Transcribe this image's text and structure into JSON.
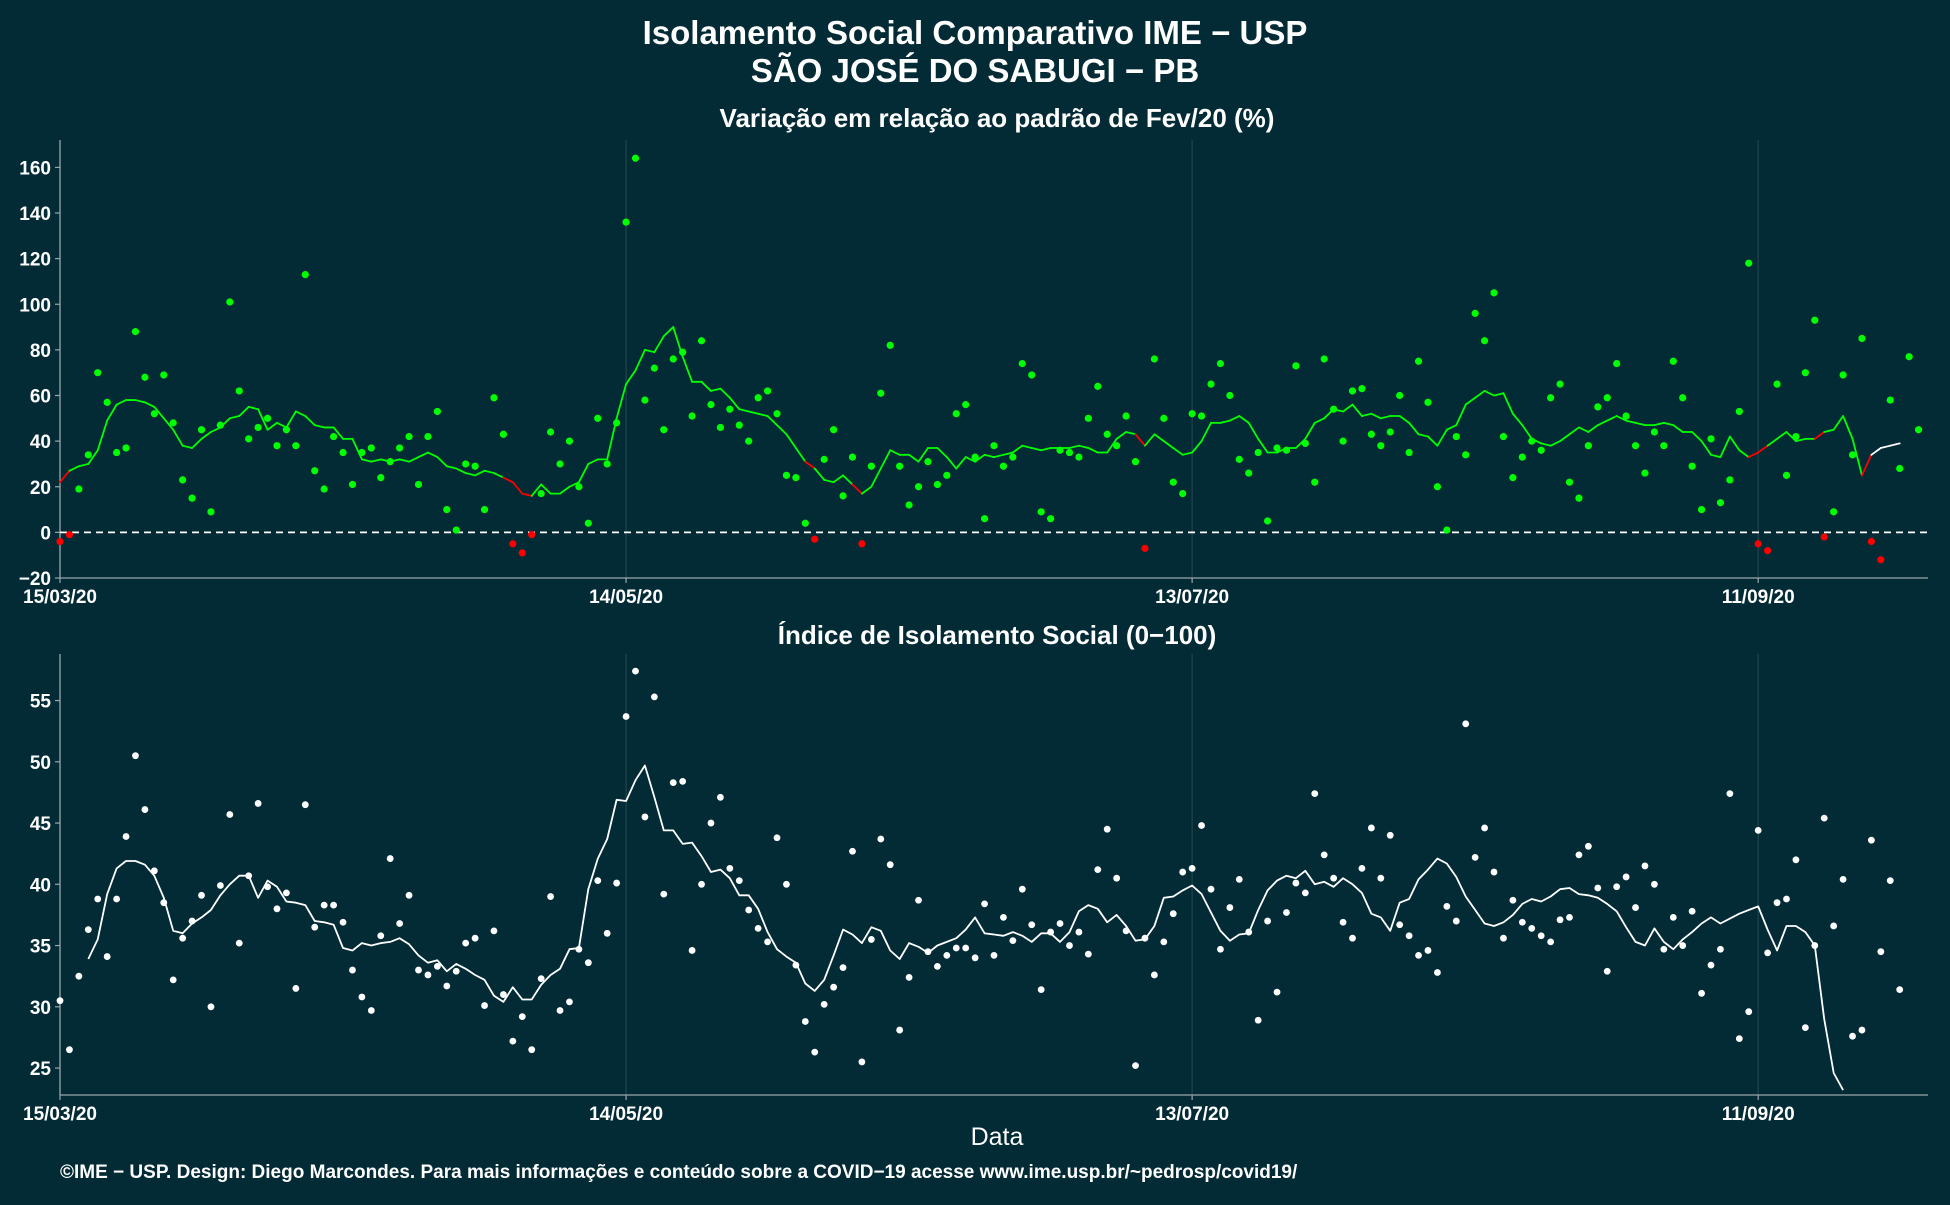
{
  "header": {
    "title_line1": "Isolamento Social Comparativo IME − USP",
    "title_line2": "SÃO JOSÉ DO SABUGI − PB"
  },
  "footer": {
    "xlabel": "Data",
    "credit": "©IME − USP. Design: Diego Marcondes. Para mais informações e conteúdo sobre a COVID−19 acesse www.ime.usp.br/~pedrosp/covid19/"
  },
  "colors": {
    "background": "#022b36",
    "axis": "#9aa7ab",
    "grid": "#21444d",
    "positive": "#00ff00",
    "negative": "#ff0000",
    "index": "#ffffff"
  },
  "chart_data": [
    {
      "type": "scatter",
      "title": "Variação em relação ao padrão de Fev/20 (%)",
      "x_tick_labels": [
        "15/03/20",
        "14/05/20",
        "13/07/20",
        "11/09/20"
      ],
      "x_tick_days": [
        0,
        60,
        120,
        180
      ],
      "x_start": "15/03/20",
      "x_range_days": [
        0,
        198
      ],
      "ylim": [
        -20,
        172
      ],
      "yticks": [
        -20,
        0,
        20,
        40,
        60,
        80,
        100,
        120,
        140,
        160
      ],
      "reference_line": 0,
      "points": [
        -4,
        -1,
        19,
        34,
        70,
        57,
        35,
        37,
        88,
        68,
        52,
        69,
        48,
        23,
        15,
        45,
        9,
        47,
        101,
        62,
        41,
        46,
        50,
        38,
        45,
        38,
        113,
        27,
        19,
        42,
        35,
        21,
        35,
        37,
        24,
        31,
        37,
        42,
        21,
        42,
        53,
        10,
        1,
        30,
        29,
        10,
        59,
        43,
        -5,
        -9,
        -1,
        17,
        44,
        30,
        40,
        20,
        4,
        50,
        30,
        48,
        136,
        164,
        58,
        72,
        45,
        76,
        79,
        51,
        84,
        56,
        46,
        54,
        47,
        40,
        59,
        62,
        52,
        25,
        24,
        4,
        -3,
        32,
        45,
        16,
        33,
        -5,
        29,
        61,
        82,
        29,
        12,
        20,
        31,
        21,
        25,
        52,
        56,
        33,
        6,
        38,
        29,
        33,
        74,
        69,
        9,
        6,
        36,
        35,
        33,
        50,
        64,
        43,
        38,
        51,
        31,
        -7,
        76,
        50,
        22,
        17,
        52,
        51,
        65,
        74,
        60,
        32,
        26,
        35,
        5,
        37,
        36,
        73,
        39,
        22,
        76,
        54,
        40,
        62,
        63,
        43,
        38,
        44,
        60,
        35,
        75,
        57,
        20,
        1,
        42,
        34,
        96,
        84,
        105,
        42,
        24,
        33,
        40,
        36,
        59,
        65,
        22,
        15,
        38,
        55,
        59,
        74,
        51,
        38,
        26,
        44,
        38,
        75,
        59,
        29,
        10,
        41,
        13,
        23,
        53,
        118,
        -5,
        -8,
        65,
        25,
        42,
        70,
        93,
        -2,
        9,
        69,
        34,
        85,
        -4,
        -12,
        58,
        28,
        77,
        45
      ],
      "moving_average": [
        22,
        27,
        29,
        30,
        36,
        49,
        56,
        58,
        58,
        57,
        55,
        50,
        45,
        38,
        37,
        41,
        44,
        46,
        50,
        51,
        55,
        54,
        45,
        48,
        46,
        53,
        51,
        47,
        46,
        46,
        41,
        41,
        32,
        31,
        32,
        31,
        32,
        31,
        33,
        35,
        33,
        29,
        28,
        26,
        25,
        27,
        26,
        24,
        22,
        17,
        16,
        21,
        17,
        17,
        20,
        22,
        30,
        32,
        32,
        50,
        65,
        71,
        80,
        79,
        86,
        90,
        77,
        66,
        66,
        62,
        63,
        59,
        54,
        53,
        52,
        51,
        47,
        43,
        37,
        31,
        28,
        23,
        22,
        25,
        21,
        17,
        20,
        28,
        36,
        34,
        34,
        31,
        37,
        37,
        33,
        28,
        33,
        31,
        34,
        33,
        34,
        35,
        38,
        37,
        36,
        37,
        37,
        37,
        38,
        37,
        35,
        35,
        41,
        44,
        43,
        38,
        43,
        40,
        37,
        34,
        35,
        40,
        48,
        48,
        49,
        51,
        48,
        41,
        35,
        35,
        37,
        37,
        41,
        48,
        50,
        54,
        53,
        56,
        51,
        52,
        50,
        51,
        51,
        48,
        43,
        42,
        38,
        45,
        47,
        56,
        59,
        62,
        60,
        61,
        52,
        47,
        41,
        39,
        38,
        40,
        43,
        46,
        44,
        47,
        49,
        51,
        49,
        48,
        47,
        47,
        48,
        47,
        44,
        44,
        40,
        34,
        33,
        42,
        36,
        33,
        35,
        38,
        41,
        44,
        40,
        41,
        41,
        44,
        45,
        51,
        41,
        25,
        34,
        37,
        38,
        39
      ],
      "color_rule": "values >= 0 in positive color, values < 0 in negative color"
    },
    {
      "type": "scatter",
      "title": "Índice de Isolamento Social (0−100)",
      "x_tick_labels": [
        "15/03/20",
        "14/05/20",
        "13/07/20",
        "11/09/20"
      ],
      "x_tick_days": [
        0,
        60,
        120,
        180
      ],
      "x_start": "15/03/20",
      "x_range_days": [
        0,
        198
      ],
      "ylim": [
        22.8,
        58.8
      ],
      "yticks": [
        25,
        30,
        35,
        40,
        45,
        50,
        55
      ],
      "points": [
        30.5,
        26.5,
        32.5,
        36.3,
        38.8,
        34.1,
        38.8,
        43.9,
        50.5,
        46.1,
        41.1,
        38.5,
        32.2,
        35.6,
        37.0,
        39.1,
        30.0,
        39.9,
        45.7,
        35.2,
        40.7,
        46.6,
        39.8,
        38.0,
        39.3,
        31.5,
        46.5,
        36.5,
        38.3,
        38.3,
        36.9,
        33.0,
        30.8,
        29.7,
        35.8,
        42.1,
        36.8,
        39.1,
        33.0,
        32.6,
        33.3,
        31.7,
        32.9,
        35.2,
        35.6,
        30.1,
        36.2,
        31.0,
        27.2,
        29.2,
        26.5,
        32.3,
        39.0,
        29.7,
        30.4,
        34.7,
        33.6,
        40.3,
        36.0,
        40.1,
        53.7,
        57.4,
        45.5,
        55.3,
        39.2,
        48.3,
        48.4,
        34.6,
        40.0,
        45.0,
        47.1,
        41.3,
        40.3,
        37.9,
        36.4,
        35.3,
        43.8,
        40.0,
        33.4,
        28.8,
        26.3,
        30.2,
        31.6,
        33.2,
        42.7,
        25.5,
        35.5,
        43.7,
        41.6,
        28.1,
        32.4,
        38.7,
        34.5,
        33.3,
        34.2,
        34.8,
        34.8,
        34.0,
        38.4,
        34.2,
        37.3,
        35.4,
        39.6,
        36.7,
        31.4,
        36.1,
        36.8,
        35.0,
        36.1,
        34.3,
        41.2,
        44.5,
        40.5,
        36.2,
        25.2,
        35.6,
        32.6,
        35.3,
        37.6,
        41.0,
        41.3,
        44.8,
        39.6,
        34.7,
        38.1,
        40.4,
        36.1,
        28.9,
        37.0,
        31.2,
        37.7,
        40.1,
        39.3,
        47.4,
        42.4,
        40.5,
        36.9,
        35.6,
        41.3,
        44.6,
        40.5,
        44.0,
        36.7,
        35.8,
        34.2,
        34.6,
        32.8,
        38.2,
        37.0,
        53.1,
        42.2,
        44.6,
        41.0,
        35.6,
        38.7,
        36.9,
        36.4,
        35.8,
        35.3,
        37.1,
        37.3,
        42.4,
        43.1,
        39.7,
        32.9,
        39.8,
        40.6,
        38.1,
        41.5,
        40.0,
        34.7,
        37.3,
        35.0,
        37.8,
        31.1,
        33.4,
        34.7,
        47.4,
        27.4,
        29.6,
        44.4,
        34.4,
        38.5,
        38.8,
        42.0,
        28.3,
        35.0,
        45.4,
        36.6,
        40.4,
        27.6,
        28.1,
        43.6,
        34.5,
        40.3,
        31.4
      ],
      "moving_average": [
        null,
        null,
        null,
        33.9,
        35.5,
        39.2,
        41.3,
        41.9,
        41.9,
        41.6,
        40.7,
        38.9,
        36.2,
        36.0,
        36.8,
        37.3,
        37.9,
        39.1,
        40.0,
        40.7,
        40.7,
        38.9,
        40.3,
        39.8,
        38.6,
        38.5,
        38.3,
        37.0,
        36.9,
        36.7,
        34.8,
        34.6,
        35.2,
        35.0,
        35.2,
        35.3,
        35.6,
        35.1,
        34.2,
        33.6,
        33.8,
        32.9,
        33.5,
        33.1,
        32.6,
        32.2,
        30.9,
        30.4,
        31.6,
        30.6,
        30.6,
        31.8,
        32.6,
        33.1,
        34.7,
        34.8,
        39.6,
        42.1,
        43.7,
        46.9,
        46.8,
        48.5,
        49.7,
        47.1,
        44.4,
        44.4,
        43.3,
        43.4,
        42.3,
        41.0,
        41.2,
        40.5,
        39.1,
        39.1,
        38.0,
        36.1,
        34.7,
        34.1,
        33.6,
        31.9,
        31.3,
        32.2,
        34.2,
        36.3,
        35.9,
        35.2,
        36.5,
        36.2,
        34.6,
        33.9,
        35.2,
        34.9,
        34.4,
        35.0,
        35.3,
        35.6,
        36.3,
        37.3,
        36.0,
        35.9,
        35.8,
        36.1,
        35.8,
        35.3,
        36.0,
        36.0,
        35.3,
        36.1,
        37.8,
        38.3,
        38.0,
        36.9,
        37.5,
        36.6,
        35.4,
        35.5,
        36.6,
        38.9,
        39.0,
        39.5,
        39.9,
        39.2,
        37.7,
        36.2,
        35.4,
        35.9,
        36.0,
        37.9,
        39.5,
        40.3,
        40.7,
        40.5,
        41.1,
        40.0,
        40.2,
        39.8,
        40.5,
        40.0,
        39.3,
        37.6,
        37.3,
        36.2,
        38.5,
        38.8,
        40.4,
        41.2,
        42.1,
        41.7,
        40.6,
        39.0,
        37.9,
        36.8,
        36.6,
        36.9,
        37.5,
        38.4,
        38.8,
        38.6,
        39.0,
        39.6,
        39.7,
        39.2,
        39.1,
        38.9,
        38.4,
        37.8,
        36.5,
        35.3,
        35.0,
        36.4,
        35.3,
        34.7,
        35.5,
        36.1,
        36.8,
        37.3,
        36.8,
        37.2,
        37.6,
        37.9,
        38.2,
        36.3,
        34.6,
        36.6,
        36.6,
        36.1,
        35.0,
        29.0,
        24.6,
        23.2
      ]
    }
  ]
}
